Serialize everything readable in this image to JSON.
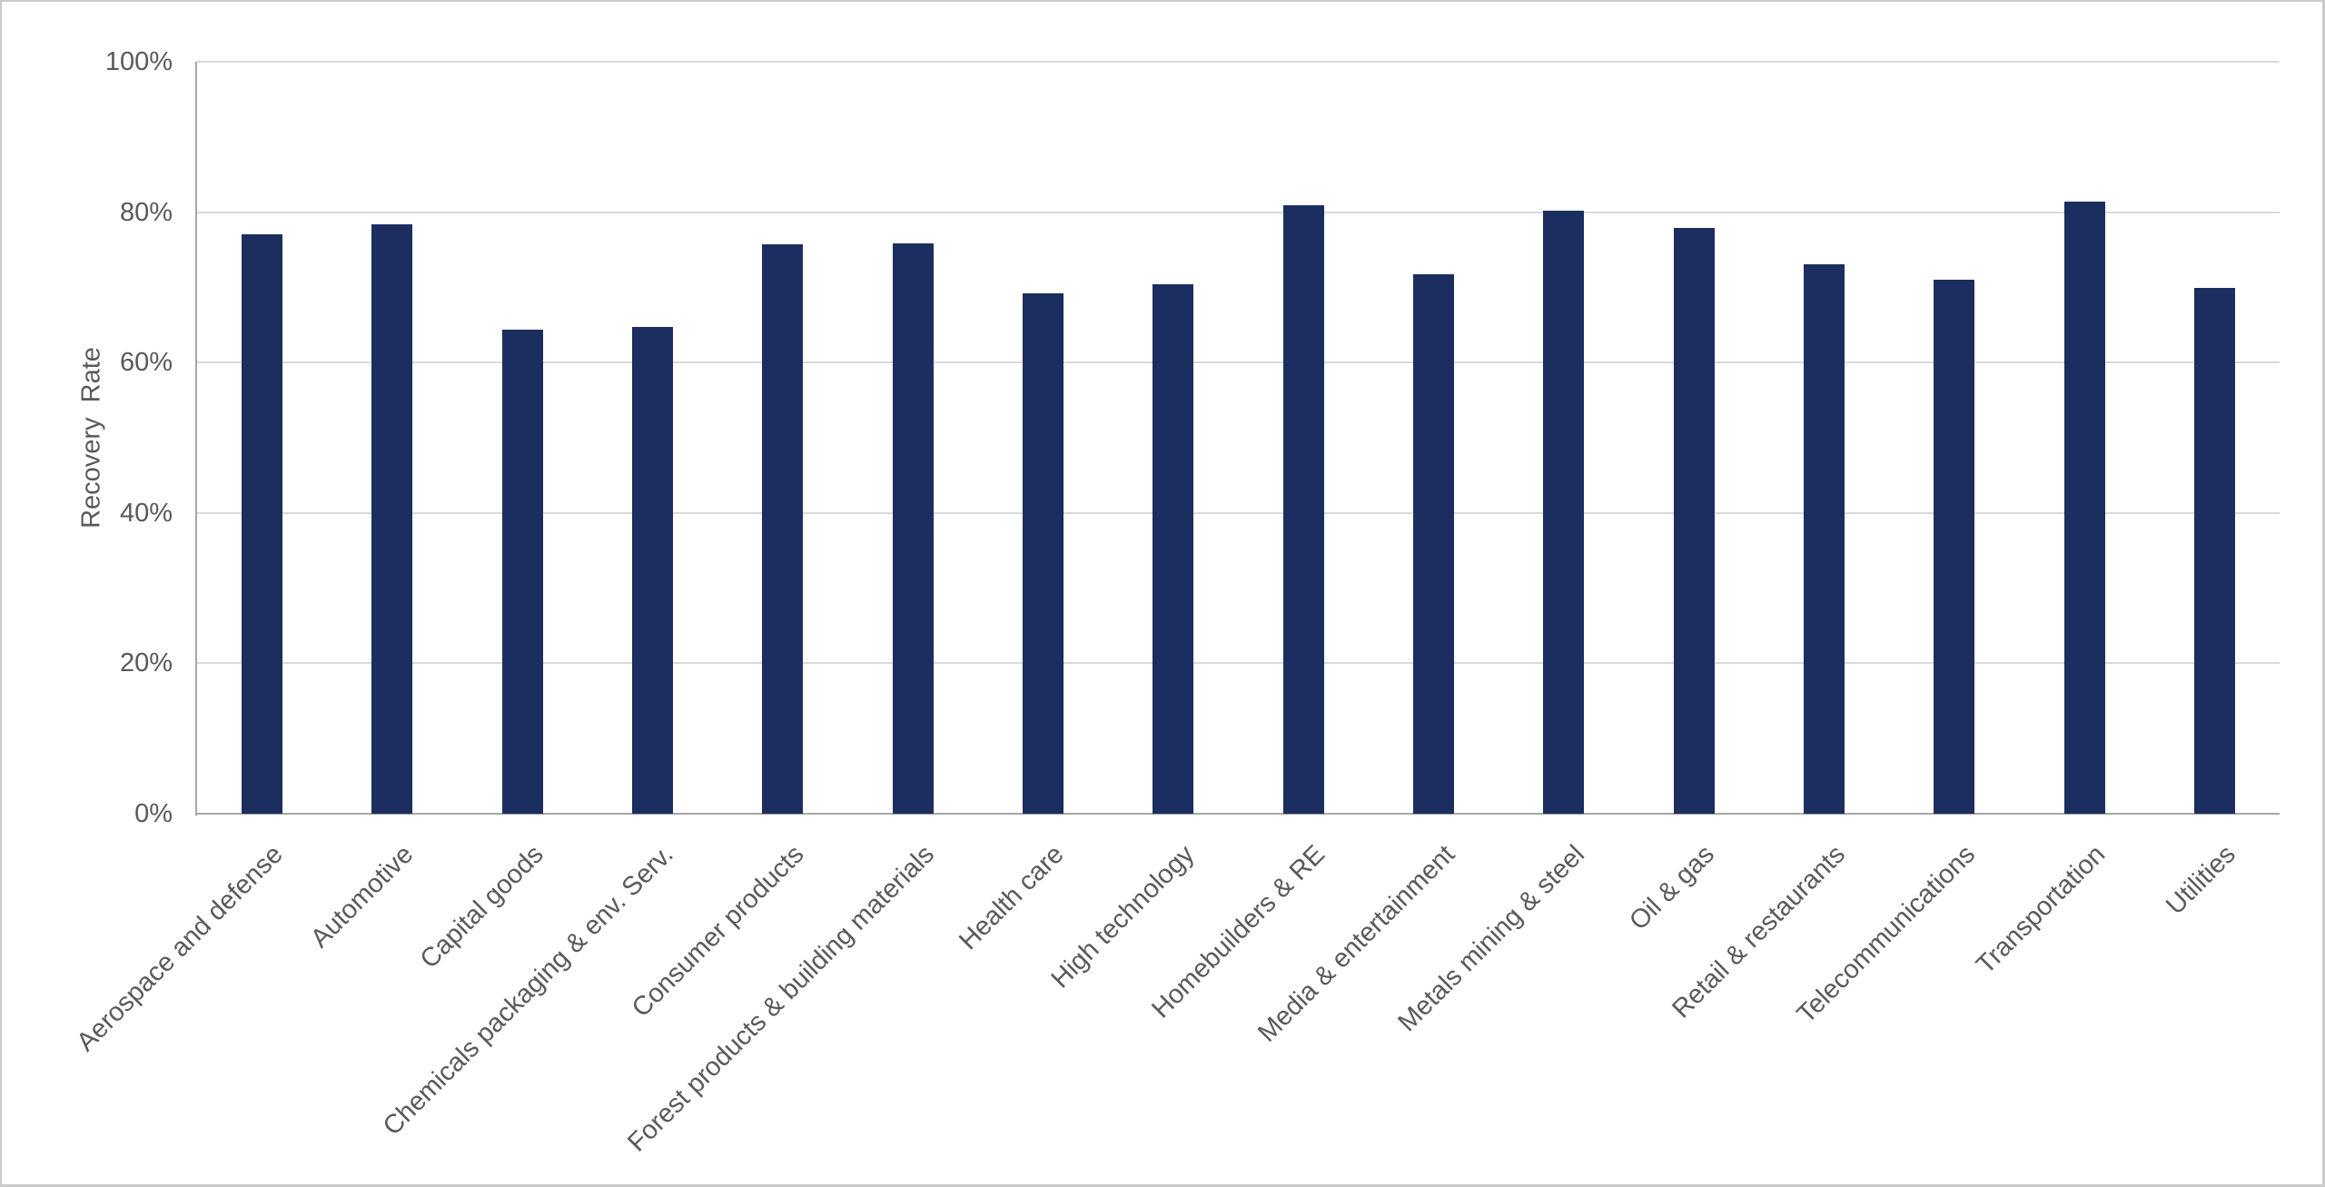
{
  "chart_data": {
    "type": "bar",
    "title": "",
    "xlabel": "",
    "ylabel": "Recovery  Rate",
    "categories": [
      "Aerospace and defense",
      "Automotive",
      "Capital goods",
      "Chemicals packaging & env. Serv.",
      "Consumer products",
      "Forest products & building materials",
      "Health care",
      "High technology",
      "Homebuilders & RE",
      "Media & entertainment",
      "Metals mining & steel",
      "Oil & gas",
      "Retail & restaurants",
      "Telecommunications",
      "Transportation",
      "Utilities"
    ],
    "values": [
      77.1,
      78.4,
      64.4,
      64.7,
      75.7,
      75.9,
      69.2,
      70.4,
      80.9,
      71.7,
      80.2,
      77.9,
      73.1,
      71.0,
      81.4,
      69.9
    ],
    "y_axis": {
      "min": 0,
      "max": 100,
      "tick_values": [
        0,
        20,
        40,
        60,
        80,
        100
      ],
      "tick_labels": [
        "0%",
        "20%",
        "40%",
        "60%",
        "80%",
        "100%"
      ],
      "format": "percent"
    },
    "grid": true,
    "legend": false,
    "colors": {
      "bar": "#1B2E5F",
      "gridline": "#d9d9d9",
      "axis_line": "#a6a6a6",
      "text": "#595959",
      "background": "#ffffff",
      "frame_border": "#cbcbcb"
    }
  }
}
